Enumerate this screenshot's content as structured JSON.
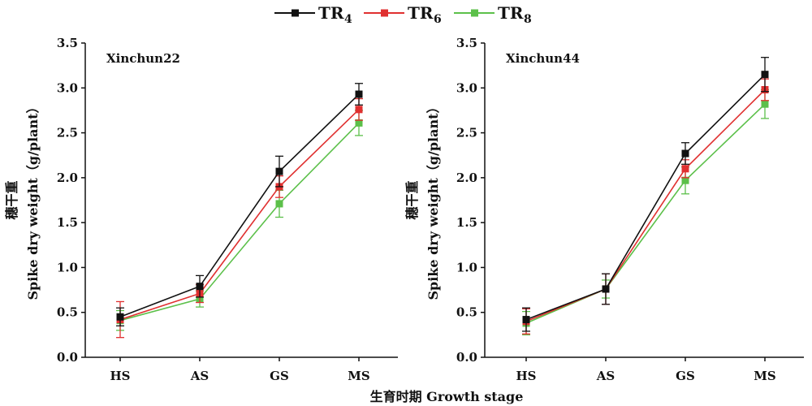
{
  "colors": {
    "TR4": "#111111",
    "TR6": "#e03030",
    "TR8": "#5cc04a",
    "axis": "#111111"
  },
  "legend": [
    {
      "key": "TR4",
      "label": "TR",
      "sub": "4"
    },
    {
      "key": "TR6",
      "label": "TR",
      "sub": "6"
    },
    {
      "key": "TR8",
      "label": "TR",
      "sub": "8"
    }
  ],
  "shared": {
    "ylabel_cn": "穗干重",
    "ylabel_en": "Spike dry weight（g/plant）",
    "xlabel": "生育时期 Growth stage"
  },
  "chart_data": [
    {
      "type": "line",
      "title": "Xinchun22",
      "categories": [
        "HS",
        "AS",
        "GS",
        "MS"
      ],
      "ylim": [
        0,
        3.5
      ],
      "yticks": [
        "0.0",
        "0.5",
        "1.0",
        "1.5",
        "2.0",
        "2.5",
        "3.0",
        "3.5"
      ],
      "grid": false,
      "series": [
        {
          "name": "TR4",
          "values": [
            0.45,
            0.79,
            2.07,
            2.93
          ],
          "errors": [
            0.1,
            0.12,
            0.17,
            0.12
          ]
        },
        {
          "name": "TR6",
          "values": [
            0.42,
            0.71,
            1.9,
            2.76
          ],
          "errors": [
            0.2,
            0.1,
            0.12,
            0.12
          ]
        },
        {
          "name": "TR8",
          "values": [
            0.41,
            0.65,
            1.71,
            2.61
          ],
          "errors": [
            0.11,
            0.09,
            0.15,
            0.14
          ]
        }
      ]
    },
    {
      "type": "line",
      "title": "Xinchun44",
      "categories": [
        "HS",
        "AS",
        "GS",
        "MS"
      ],
      "ylim": [
        0,
        3.5
      ],
      "yticks": [
        "0.0",
        "0.5",
        "1.0",
        "1.5",
        "2.0",
        "2.5",
        "3.0",
        "3.5"
      ],
      "grid": false,
      "series": [
        {
          "name": "TR4",
          "values": [
            0.42,
            0.76,
            2.27,
            3.15
          ],
          "errors": [
            0.13,
            0.17,
            0.12,
            0.19
          ]
        },
        {
          "name": "TR6",
          "values": [
            0.4,
            0.76,
            2.1,
            2.98
          ],
          "errors": [
            0.14,
            0.17,
            0.1,
            0.12
          ]
        },
        {
          "name": "TR8",
          "values": [
            0.38,
            0.76,
            1.97,
            2.82
          ],
          "errors": [
            0.13,
            0.1,
            0.15,
            0.16
          ]
        }
      ]
    }
  ]
}
